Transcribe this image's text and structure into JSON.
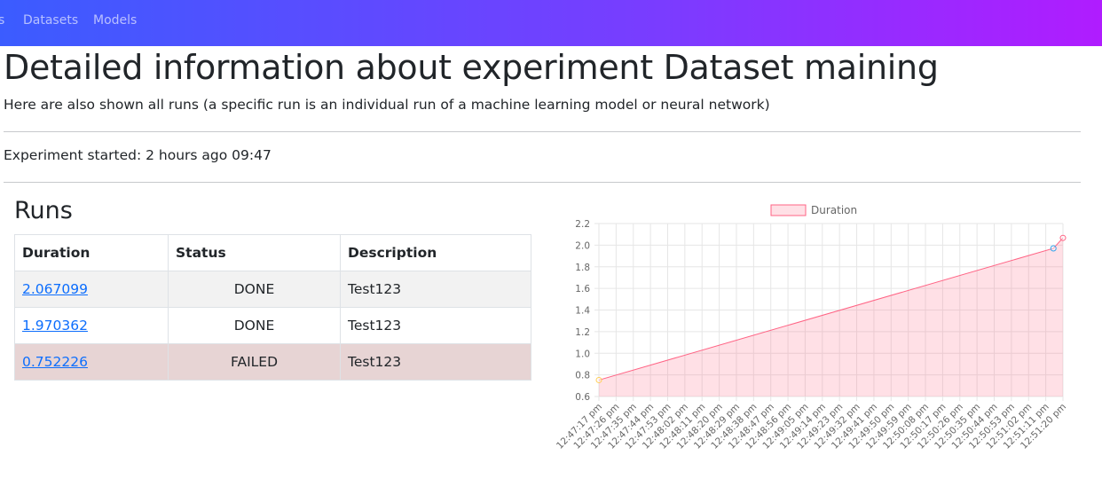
{
  "nav": {
    "items": [
      {
        "label": "s"
      },
      {
        "label": "Datasets"
      },
      {
        "label": "Models"
      }
    ]
  },
  "header": {
    "title": "Detailed information about experiment Dataset maining",
    "lead": "Here are also shown all runs (a specific run is an individual run of a machine learning model or neural network)"
  },
  "experiment": {
    "started": "Experiment started: 2 hours ago 09:47"
  },
  "runs": {
    "title": "Runs",
    "columns": [
      "Duration",
      "Status",
      "Description"
    ],
    "rows": [
      {
        "duration": "2.067099",
        "status": "DONE",
        "description": "Test123"
      },
      {
        "duration": "1.970362",
        "status": "DONE",
        "description": "Test123"
      },
      {
        "duration": "0.752226",
        "status": "FAILED",
        "description": "Test123"
      }
    ]
  },
  "colors": {
    "line": "#ff6384",
    "fill": "rgba(255,99,132,0.2)",
    "failed_row": "#e7d4d4",
    "link": "#0d6efd"
  },
  "chart_data": {
    "type": "area",
    "legend": "Duration",
    "legend_position": "top",
    "grid": true,
    "x": [
      "12:47:17 pm",
      "12:47:26 pm",
      "12:47:35 pm",
      "12:47:44 pm",
      "12:47:53 pm",
      "12:48:02 pm",
      "12:48:11 pm",
      "12:48:20 pm",
      "12:48:29 pm",
      "12:48:38 pm",
      "12:48:47 pm",
      "12:48:56 pm",
      "12:49:05 pm",
      "12:49:14 pm",
      "12:49:23 pm",
      "12:49:32 pm",
      "12:49:41 pm",
      "12:49:50 pm",
      "12:49:59 pm",
      "12:50:08 pm",
      "12:50:17 pm",
      "12:50:26 pm",
      "12:50:35 pm",
      "12:50:44 pm",
      "12:50:53 pm",
      "12:51:02 pm",
      "12:51:11 pm",
      "12:51:20 pm"
    ],
    "yticks": [
      "0.6",
      "0.8",
      "1.0",
      "1.2",
      "1.4",
      "1.6",
      "1.8",
      "2.0",
      "2.2"
    ],
    "ylim": [
      0.6,
      2.2
    ],
    "points": [
      {
        "x": "12:47:17 pm",
        "y": 0.752226,
        "color": "#ffcd56"
      },
      {
        "x": "12:51:15 pm",
        "y": 1.970362,
        "color": "#36a2eb"
      },
      {
        "x": "12:51:20 pm",
        "y": 2.067099,
        "color": "#ff6384"
      }
    ]
  }
}
